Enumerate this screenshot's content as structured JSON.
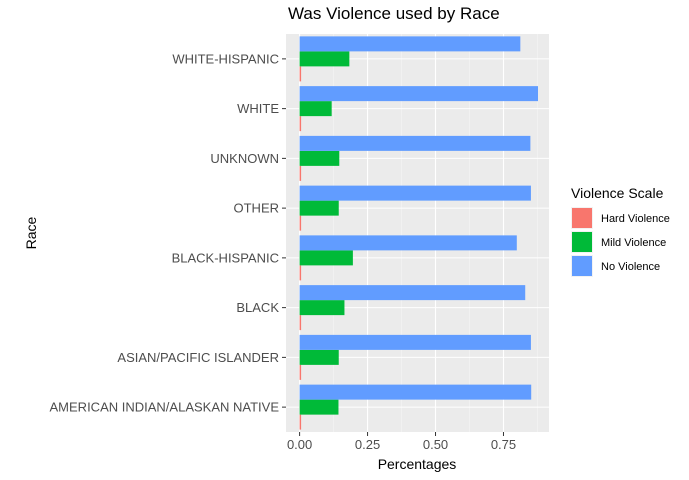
{
  "chart_data": {
    "type": "bar",
    "orientation": "horizontal",
    "title": "Was Violence used by Race",
    "xlabel": "Percentages",
    "ylabel": "Race",
    "xlim": [
      0,
      0.92
    ],
    "xticks": [
      0,
      0.25,
      0.5,
      0.75
    ],
    "xtick_labels": [
      "0.00",
      "0.25",
      "0.50",
      "0.75"
    ],
    "grid": true,
    "legend": {
      "title": "Violence Scale",
      "position": "right"
    },
    "categories": [
      "AMERICAN INDIAN/ALASKAN NATIVE",
      "ASIAN/PACIFIC ISLANDER",
      "BLACK",
      "BLACK-HISPANIC",
      "OTHER",
      "UNKNOWN",
      "WHITE",
      "WHITE-HISPANIC"
    ],
    "series": [
      {
        "name": "Hard Violence",
        "color": "#F8766D",
        "values": [
          0.005,
          0.005,
          0.005,
          0.005,
          0.005,
          0.005,
          0.005,
          0.005
        ]
      },
      {
        "name": "Mild Violence",
        "color": "#00BA38",
        "values": [
          0.143,
          0.144,
          0.165,
          0.196,
          0.144,
          0.146,
          0.118,
          0.183
        ]
      },
      {
        "name": "No Violence",
        "color": "#619CFF",
        "values": [
          0.852,
          0.851,
          0.83,
          0.799,
          0.851,
          0.849,
          0.877,
          0.812
        ]
      }
    ]
  }
}
